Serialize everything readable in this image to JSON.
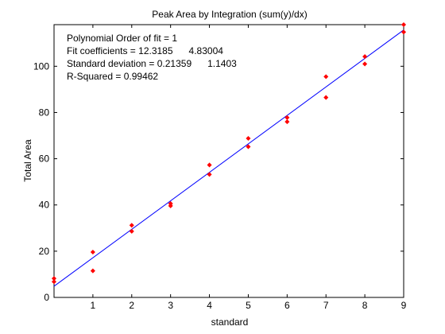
{
  "chart_data": {
    "type": "scatter",
    "title": "Peak Area by Integration (sum(y)/dx)",
    "xlabel": "standard",
    "ylabel": "Total Area",
    "xlim": [
      0,
      9
    ],
    "ylim": [
      0,
      118
    ],
    "x_ticks": [
      1,
      2,
      3,
      4,
      5,
      6,
      7,
      8,
      9
    ],
    "y_ticks": [
      0,
      20,
      40,
      60,
      80,
      100
    ],
    "grid": false,
    "annotations": [
      "Polynomial Order of fit = 1",
      "Fit coefficients = 12.3185      4.83004",
      "Standard deviation = 0.21359      1.1403",
      "R-Squared = 0.99462"
    ],
    "series": [
      {
        "type": "scatter",
        "color": "#ff0000",
        "points": [
          {
            "x": 0,
            "y": 8.2
          },
          {
            "x": 0,
            "y": 6.8
          },
          {
            "x": 1,
            "y": 19.6
          },
          {
            "x": 1,
            "y": 11.5
          },
          {
            "x": 2,
            "y": 31.2
          },
          {
            "x": 2,
            "y": 28.6
          },
          {
            "x": 3,
            "y": 40.6
          },
          {
            "x": 3,
            "y": 39.6
          },
          {
            "x": 4,
            "y": 57.3
          },
          {
            "x": 4,
            "y": 53.2
          },
          {
            "x": 5,
            "y": 68.8
          },
          {
            "x": 5,
            "y": 65.2
          },
          {
            "x": 6,
            "y": 77.8
          },
          {
            "x": 6,
            "y": 76.0
          },
          {
            "x": 7,
            "y": 95.5
          },
          {
            "x": 7,
            "y": 86.5
          },
          {
            "x": 8,
            "y": 104.2
          },
          {
            "x": 8,
            "y": 101.0
          },
          {
            "x": 9,
            "y": 118.0
          },
          {
            "x": 9,
            "y": 114.8
          }
        ]
      },
      {
        "type": "line",
        "color": "#0000ff",
        "slope": 12.3185,
        "intercept": 4.83004
      }
    ]
  }
}
